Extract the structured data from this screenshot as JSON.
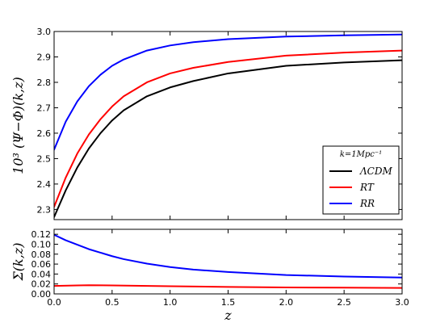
{
  "chart_data": [
    {
      "type": "line",
      "xlabel": "",
      "ylabel": "10³ (Ψ−Φ)(k,z)",
      "xlim": [
        0.0,
        3.0
      ],
      "ylim": [
        2.26,
        3.0
      ],
      "xticks": [],
      "yticks": [
        "2.3",
        "2.4",
        "2.5",
        "2.6",
        "2.7",
        "2.8",
        "2.9",
        "3.0"
      ],
      "grid": false,
      "legend": {
        "placement": "lower-right",
        "title": "k=1Mpc⁻¹",
        "entries": [
          "ΛCDM",
          "RT",
          "RR"
        ]
      },
      "series": [
        {
          "name": "ΛCDM",
          "color": "#000000",
          "x": [
            0.0,
            0.1,
            0.2,
            0.3,
            0.4,
            0.5,
            0.6,
            0.8,
            1.0,
            1.2,
            1.5,
            2.0,
            2.5,
            3.0
          ],
          "values": [
            2.27,
            2.375,
            2.465,
            2.54,
            2.6,
            2.65,
            2.69,
            2.745,
            2.78,
            2.805,
            2.835,
            2.865,
            2.878,
            2.887
          ]
        },
        {
          "name": "RT",
          "color": "#ff0000",
          "x": [
            0.0,
            0.1,
            0.2,
            0.3,
            0.4,
            0.5,
            0.6,
            0.8,
            1.0,
            1.2,
            1.5,
            2.0,
            2.5,
            3.0
          ],
          "values": [
            2.31,
            2.425,
            2.52,
            2.595,
            2.655,
            2.705,
            2.745,
            2.8,
            2.835,
            2.857,
            2.88,
            2.905,
            2.917,
            2.925
          ]
        },
        {
          "name": "RR",
          "color": "#0000ff",
          "x": [
            0.0,
            0.1,
            0.2,
            0.3,
            0.4,
            0.5,
            0.6,
            0.8,
            1.0,
            1.2,
            1.5,
            2.0,
            2.5,
            3.0
          ],
          "values": [
            2.535,
            2.645,
            2.725,
            2.785,
            2.83,
            2.865,
            2.89,
            2.925,
            2.945,
            2.958,
            2.97,
            2.98,
            2.985,
            2.988
          ]
        }
      ]
    },
    {
      "type": "line",
      "xlabel": "z",
      "ylabel": "Σ(k,z)",
      "xlim": [
        0.0,
        3.0
      ],
      "ylim": [
        0.0,
        0.13
      ],
      "xticks": [
        "0.0",
        "0.5",
        "1.0",
        "1.5",
        "2.0",
        "2.5",
        "3.0"
      ],
      "yticks": [
        "0.00",
        "0.02",
        "0.04",
        "0.06",
        "0.08",
        "0.10",
        "0.12"
      ],
      "grid": false,
      "series": [
        {
          "name": "RR",
          "color": "#0000ff",
          "x": [
            0.0,
            0.1,
            0.2,
            0.3,
            0.4,
            0.5,
            0.6,
            0.8,
            1.0,
            1.2,
            1.5,
            2.0,
            2.5,
            3.0
          ],
          "values": [
            0.119,
            0.108,
            0.099,
            0.09,
            0.083,
            0.076,
            0.07,
            0.061,
            0.054,
            0.049,
            0.044,
            0.038,
            0.035,
            0.033
          ]
        },
        {
          "name": "RT",
          "color": "#ff0000",
          "x": [
            0.0,
            0.2,
            0.3,
            0.5,
            1.0,
            1.5,
            2.0,
            2.5,
            3.0
          ],
          "values": [
            0.016,
            0.017,
            0.0175,
            0.017,
            0.0155,
            0.014,
            0.013,
            0.0125,
            0.012
          ]
        }
      ]
    }
  ]
}
